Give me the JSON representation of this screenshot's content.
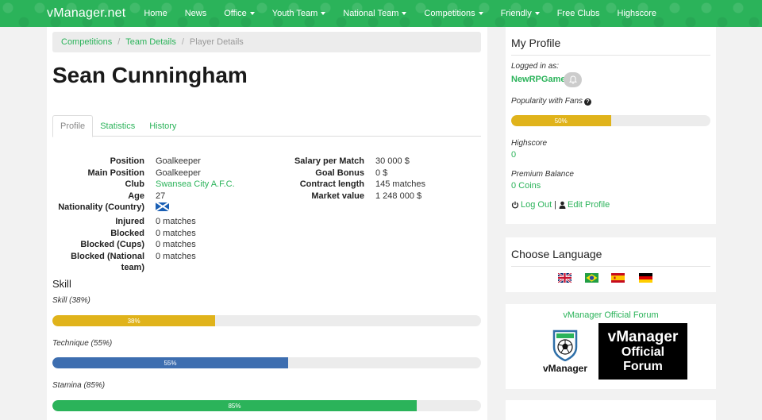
{
  "nav": {
    "brand": "vManager.net",
    "items": [
      {
        "label": "Home",
        "dropdown": false
      },
      {
        "label": "News",
        "dropdown": false
      },
      {
        "label": "Office",
        "dropdown": true
      },
      {
        "label": "Youth Team",
        "dropdown": true
      },
      {
        "label": "National Team",
        "dropdown": true
      },
      {
        "label": "Competitions",
        "dropdown": true
      },
      {
        "label": "Friendly",
        "dropdown": true
      },
      {
        "label": "Free Clubs",
        "dropdown": false
      },
      {
        "label": "Highscore",
        "dropdown": false
      }
    ]
  },
  "breadcrumb": {
    "items": [
      "Competitions",
      "Team Details"
    ],
    "active": "Player Details"
  },
  "player": {
    "name": "Sean Cunningham"
  },
  "tabs": [
    {
      "label": "Profile",
      "active": true
    },
    {
      "label": "Statistics",
      "active": false
    },
    {
      "label": "History",
      "active": false
    }
  ],
  "info_left": [
    {
      "label": "Position",
      "value": "Goalkeeper"
    },
    {
      "label": "Main Position",
      "value": "Goalkeeper"
    },
    {
      "label": "Club",
      "value": "Swansea City A.F.C.",
      "link": true
    },
    {
      "label": "Age",
      "value": "27"
    },
    {
      "label": "Nationality (Country)",
      "value": "",
      "flag": "scotland-flag-icon"
    },
    {
      "label": "Injured",
      "value": "0 matches"
    },
    {
      "label": "Blocked",
      "value": "0 matches"
    },
    {
      "label": "Blocked (Cups)",
      "value": "0 matches"
    },
    {
      "label": "Blocked (National team)",
      "value": "0 matches"
    }
  ],
  "info_right": [
    {
      "label": "Salary per Match",
      "value": "30 000 $"
    },
    {
      "label": "Goal Bonus",
      "value": "0 $"
    },
    {
      "label": "Contract length",
      "value": "145 matches"
    },
    {
      "label": "Market value",
      "value": "1 248 000 $"
    }
  ],
  "skills": {
    "heading": "Skill",
    "items": [
      {
        "label": "Skill (38%)",
        "bar_text": "38%",
        "percent": 38,
        "color": "#e0b31b"
      },
      {
        "label": "Technique (55%)",
        "bar_text": "55%",
        "percent": 55,
        "color": "#3d6eb0"
      },
      {
        "label": "Stamina (85%)",
        "bar_text": "85%",
        "percent": 85,
        "color": "#2bb35a"
      }
    ]
  },
  "profile": {
    "title": "My Profile",
    "logged_in_label": "Logged in as:",
    "username": "NewRPGames",
    "popularity_label": "Popularity with Fans",
    "popularity_bar_text": "50%",
    "popularity_percent": 50,
    "popularity_color": "#e0b31b",
    "highscore_label": "Highscore",
    "highscore_value": "0",
    "premium_label": "Premium Balance",
    "premium_value": "0 Coins",
    "logout_label": "Log Out",
    "separator": "|",
    "edit_label": "Edit Profile"
  },
  "language": {
    "title": "Choose Language",
    "flags": [
      "uk-flag-icon",
      "brazil-flag-icon",
      "spain-flag-icon",
      "germany-flag-icon"
    ]
  },
  "forum": {
    "title": "vManager Official Forum",
    "logo_text": "vManager",
    "banner_lines": [
      "vManager",
      "Official",
      "Forum"
    ]
  },
  "colors": {
    "accent": "#2bb35a",
    "yellow": "#e0b31b",
    "blue": "#3d6eb0"
  }
}
